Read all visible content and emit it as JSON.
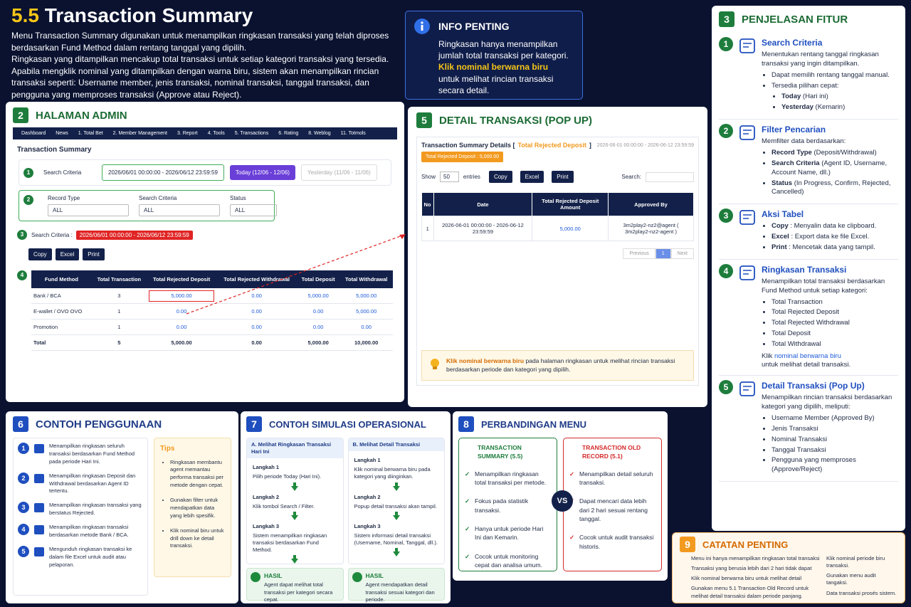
{
  "header": {
    "number": "5.5",
    "title": "Transaction Summary",
    "paragraphs": [
      "Menu Transaction Summary digunakan untuk menampilkan ringkasan transaksi yang telah diproses berdasarkan Fund Method dalam rentang tanggal yang dipilih.",
      "Ringkasan yang ditampilkan mencakup total transaksi untuk setiap kategori transaksi yang tersedia.",
      "Apabila mengklik nominal yang ditampilkan dengan warna biru, sistem akan menampilkan rincian transaksi seperti: Username member, jenis transaksi, nominal transaksi, tanggal transaksi, dan pengguna yang memproses transaksi (Approve atau Reject)."
    ]
  },
  "info": {
    "title": "INFO PENTING",
    "text": "Ringkasan hanya menampilkan jumlah total transaksi per kategori.",
    "highlight": "Klik nominal berwarna biru",
    "text2": "untuk melihat rincian transaksi secara detail."
  },
  "admin": {
    "number": "2",
    "title": "HALAMAN ADMIN",
    "nav": [
      "Dashboard",
      "News",
      "1. Total Bet",
      "2. Member Management",
      "3. Report",
      "4. Tools",
      "5. Transactions",
      "6. Rating",
      "8. Weblog",
      "11. Totmols"
    ],
    "page_title": "Transaction Summary",
    "steps": [
      "1",
      "2",
      "3",
      "4"
    ],
    "search_label": "Search Criteria",
    "date_range": "2026/06/01 00:00:00 - 2026/06/12 23:59:59",
    "today": "Today (12/06 - 12/06)",
    "yesterday": "Yesterday (11/06 - 11/06)",
    "filters": [
      {
        "label": "Record Type",
        "value": "ALL"
      },
      {
        "label": "Search Criteria",
        "value": "ALL"
      },
      {
        "label": "Status",
        "value": "ALL"
      }
    ],
    "criteria_label": "Search Criteria :",
    "criteria_value": "2026/06/01 00:00:00 - 2026/06/12 23:59:59",
    "buttons": [
      "Copy",
      "Excel",
      "Print"
    ],
    "table": {
      "headers": [
        "Fund Method",
        "Total Transaction",
        "Total Rejected Deposit",
        "Total Rejected Withdrawal",
        "Total Deposit",
        "Total Withdrawal"
      ],
      "rows": [
        [
          "Bank / BCA",
          "3",
          "5,000.00",
          "0.00",
          "5,000.00",
          "5,000.00"
        ],
        [
          "E-wallet / OVO OVO",
          "1",
          "0.00",
          "0.00",
          "0.00",
          "5,000.00"
        ],
        [
          "Promotion",
          "1",
          "0.00",
          "0.00",
          "0.00",
          "0.00"
        ],
        [
          "Total",
          "5",
          "5,000.00",
          "0.00",
          "5,000.00",
          "10,000.00"
        ]
      ]
    }
  },
  "detail": {
    "number": "5",
    "title": "DETAIL TRANSAKSI (POP UP)",
    "heading": "Transaction Summary Details [",
    "heading_highlight": "Total Rejected Deposit",
    "heading_end": "]",
    "date_range": "2026-06-01 00:00:00 - 2026-06-12 23:59:59",
    "badge": "Total Rejected Deposit : 5,000.00",
    "show": "Show",
    "show_value": "50",
    "entries": "entries",
    "buttons": [
      "Copy",
      "Excel",
      "Print"
    ],
    "search": "Search:",
    "table": {
      "headers": [
        "No",
        "Date",
        "Total Rejected Deposit Amount",
        "Approved By"
      ],
      "rows": [
        [
          "1",
          "2026-06-01 00:00:00 - 2026-06-12 23:59:59",
          "5,000.00",
          "3m2play2-nz2@agent ( 3m2play2-nz2-agent )"
        ]
      ]
    },
    "pagination": [
      "Previous",
      "1",
      "Next"
    ],
    "note_highlight": "Klik nominal berwarna biru",
    "note": "pada halaman ringkasan untuk melihat rincian transaksi berdasarkan periode dan kategori yang dipilih."
  },
  "features": {
    "number": "3",
    "title": "PENJELASAN FITUR",
    "items": [
      {
        "number": "1",
        "title": "Search Criteria",
        "desc": "Menentukan rentang tanggal ringkasan transaksi yang ingin ditampilkan.",
        "bullets": [
          {
            "text": "Dapat memilih rentang tanggal manual."
          },
          {
            "text": "Tersedia pilihan cepat:"
          }
        ],
        "sub_bullets": [
          {
            "bold": "Today",
            "text": "(Hari ini)"
          },
          {
            "bold": "Yesterday",
            "text": "(Kemarin)"
          }
        ]
      },
      {
        "number": "2",
        "title": "Filter Pencarian",
        "desc": "Memfilter data berdasarkan:",
        "bullets": [
          {
            "bold": "Record Type",
            "text": "(Deposit/Withdrawal)"
          },
          {
            "bold": "Search Criteria",
            "text": "(Agent ID, Username, Account Name, dll.)"
          },
          {
            "bold": "Status",
            "text": "(In Progress, Confirm, Rejected, Cancelled)"
          }
        ]
      },
      {
        "number": "3",
        "title": "Aksi Tabel",
        "bullets": [
          {
            "bold": "Copy",
            "text": ": Menyalin data ke clipboard."
          },
          {
            "bold": "Excel",
            "text": ": Export data ke file Excel."
          },
          {
            "bold": "Print",
            "text": ": Mencetak data yang tampil."
          }
        ]
      },
      {
        "number": "4",
        "title": "Ringkasan Transaksi",
        "desc": "Menampilkan total transaksi berdasarkan Fund Method untuk setiap kategori:",
        "bullets": [
          {
            "text": "Total Transaction"
          },
          {
            "text": "Total Rejected Deposit"
          },
          {
            "text": "Total Rejected Withdrawal"
          },
          {
            "text": "Total Deposit"
          },
          {
            "text": "Total Withdrawal"
          }
        ],
        "tail": "Klik",
        "tail_link": "nominal berwarna biru",
        "tail_end": "untuk melihat detail transaksi."
      },
      {
        "number": "5",
        "title": "Detail Transaksi (Pop Up)",
        "desc": "Menampilkan rincian transaksi berdasarkan kategori yang dipilih, meliputi:",
        "bullets": [
          {
            "text": "Username Member (Approved By)"
          },
          {
            "text": "Jenis Transaksi"
          },
          {
            "text": "Nominal Transaksi"
          },
          {
            "text": "Tanggal Transaksi"
          },
          {
            "text": "Pengguna yang memproses (Approve/Reject)"
          }
        ]
      }
    ]
  },
  "usage": {
    "number": "6",
    "title": "CONTOH PENGGUNAAN",
    "items": [
      {
        "number": "1",
        "text": "Menampilkan ringkasan seluruh transaksi berdasarkan Fund Method pada periode Hari Ini."
      },
      {
        "number": "2",
        "text": "Menampilkan ringkasan Deposit dan Withdrawal berdasarkan Agent ID tertentu."
      },
      {
        "number": "3",
        "text": "Menampilkan ringkasan transaksi yang berstatus Rejected."
      },
      {
        "number": "4",
        "text": "Menampilkan ringkasan transaksi berdasarkan metode Bank / BCA."
      },
      {
        "number": "5",
        "text": "Mengunduh ringkasan transaksi ke dalam file Excel untuk audit atau pelaporan."
      }
    ],
    "tips_title": "Tips",
    "tips": [
      "Ringkasan membantu agent memantau performa transaksi per metode dengan cepat.",
      "Gunakan filter untuk mendapatkan data yang lebih spesifik.",
      "Klik nominal biru untuk drill down ke detail transaksi."
    ]
  },
  "simulation": {
    "number": "7",
    "title": "CONTOH SIMULASI OPERASIONAL",
    "columns": [
      {
        "title": "A. Melihat Ringkasan Transaksi Hari Ini",
        "steps": [
          {
            "label": "Langkah 1",
            "text": "Pilih periode Today (Hari Ini)."
          },
          {
            "label": "Langkah 2",
            "text": "Klik tombol Search / Filter."
          },
          {
            "label": "Langkah 3",
            "text": "Sistem menampilkan ringkasan transaksi berdasarkan Fund Method."
          }
        ],
        "result_title": "HASIL",
        "result": "Agent dapat melihat total transaksi per kategori secara cepat."
      },
      {
        "title": "B. Melihat Detail Transaksi",
        "steps": [
          {
            "label": "Langkah 1",
            "text": "Klik nominal berwarna biru pada kategori yang diinginkan."
          },
          {
            "label": "Langkah 2",
            "text": "Popup detail transaksi akan tampil."
          },
          {
            "label": "Langkah 3",
            "text": "Sistem informasi detail transaksi (Username, Nominal, Tanggal, dll.)."
          }
        ],
        "result_title": "HASIL",
        "result": "Agent mendapatkan detail transaksi sesuai kategori dan periode."
      }
    ]
  },
  "compare": {
    "number": "8",
    "title": "PERBANDINGAN MENU",
    "left": {
      "title": "TRANSACTION SUMMARY (5.5)",
      "points": [
        "Menampilkan ringkasan total transaksi per metode.",
        "Fokus pada statistik transaksi.",
        "Hanya untuk periode Hari Ini dan Kemarin.",
        "Cocok untuk monitoring cepat dan analisa umum."
      ]
    },
    "vs": "VS",
    "right": {
      "title": "TRANSACTION OLD RECORD (5.1)",
      "points": [
        "Menampilkan detail seluruh transaksi.",
        "Dapat mencari data lebih dari 2 hari sesuai rentang tanggal.",
        "Cocok untuk audit transaksi historis."
      ]
    }
  },
  "notes": {
    "number": "9",
    "title": "CATATAN PENTING",
    "left": [
      "Menu ini hanya menampilkan ringkasan total transaksi",
      "Transaksi yang berusia lebih dari 2 hari tidak dapat",
      "Klik nominal berwarna biru untuk melihat detail",
      "Gunakan menu 5.1 Transaction Old Record untuk melihat detail transaksi dalam periode panjang."
    ],
    "right": [
      "Klik nominal periode biru transaksi.",
      "Gunakan menu audit tangaksi.",
      "Data transaksi prosés sistem."
    ]
  }
}
